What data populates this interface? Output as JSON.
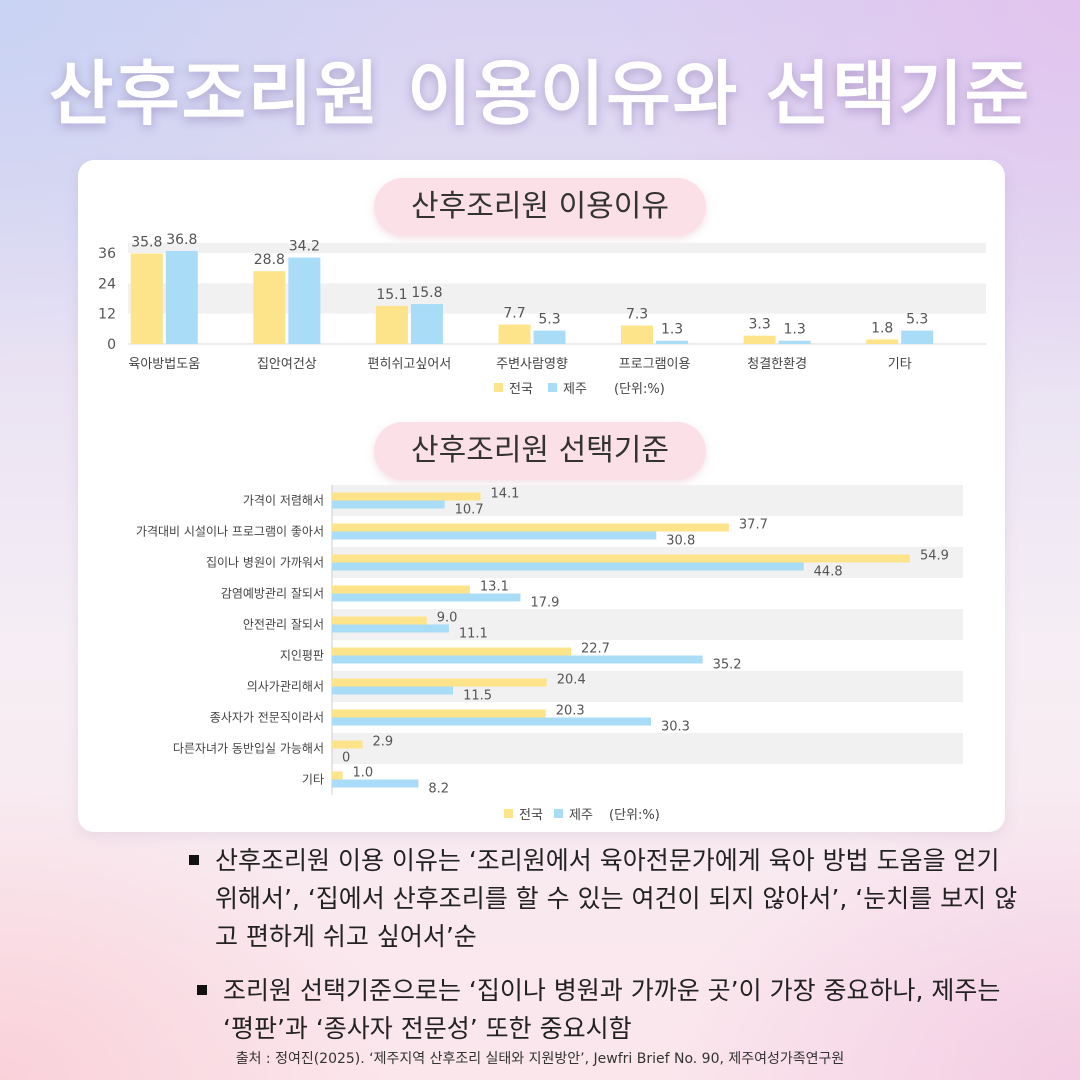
{
  "title": "산후조리원 이용이유와 선택기준",
  "colors": {
    "national": "#fde38a",
    "jeju": "#a9dcf6",
    "pill_bg": "#fbe1e7"
  },
  "chart_data": [
    {
      "type": "bar",
      "title": "산후조리원 이용이유",
      "categories": [
        "육아방법도움",
        "집안여건상",
        "편히쉬고싶어서",
        "주변사람영향",
        "프로그램이용",
        "청결한환경",
        "기타"
      ],
      "series": [
        {
          "name": "전국",
          "values": [
            35.8,
            28.8,
            15.1,
            7.7,
            7.3,
            3.3,
            1.8
          ]
        },
        {
          "name": "제주",
          "values": [
            36.8,
            34.2,
            15.8,
            5.3,
            1.3,
            1.3,
            5.3
          ]
        }
      ],
      "yticks": [
        "36",
        "24",
        "12",
        "0"
      ],
      "ylim": [
        0,
        40
      ],
      "unit": "(단위:%)",
      "legend": "bottom",
      "grid": true
    },
    {
      "type": "bar",
      "orientation": "horizontal",
      "title": "산후조리원 선택기준",
      "categories": [
        "가격이 저렴해서",
        "가격대비 시설이나 프로그램이 좋아서",
        "집이나 병원이 가까워서",
        "감염예방관리 잘되서",
        "안전관리 잘되서",
        "지인평판",
        "의사가관리해서",
        "종사자가 전문직이라서",
        "다른자녀가 동반입실 가능해서",
        "기타"
      ],
      "series": [
        {
          "name": "전국",
          "values": [
            14.1,
            37.7,
            54.9,
            13.1,
            9.0,
            22.7,
            20.4,
            20.3,
            2.9,
            1.0
          ]
        },
        {
          "name": "제주",
          "values": [
            10.7,
            30.8,
            44.8,
            17.9,
            11.1,
            35.2,
            11.5,
            30.3,
            0,
            8.2
          ]
        }
      ],
      "value_labels": {
        "national": [
          "14.1",
          "37.7",
          "54.9",
          "13.1",
          "9.0",
          "22.7",
          "20.4",
          "20.3",
          "2.9",
          "1.0"
        ],
        "jeju": [
          "10.7",
          "30.8",
          "44.8",
          "17.9",
          "11.1",
          "35.2",
          "11.5",
          "30.3",
          "0",
          "8.2"
        ]
      },
      "xlim": [
        0,
        55
      ],
      "unit": "(단위:%)",
      "legend": "bottom",
      "grid": true
    }
  ],
  "bullets": [
    "산후조리원 이용 이유는 ‘조리원에서 육아전문가에게 육아 방법 도움을 얻기 위해서’, ‘집에서 산후조리를 할 수 있는 여건이 되지 않아서’, ‘눈치를 보지 않고 편하게 쉬고 싶어서’순",
    "조리원 선택기준으로는 ‘집이나 병원과 가까운 곳’이 가장 중요하나, 제주는 ‘평판’과 ‘종사자 전문성’ 또한 중요시함"
  ],
  "source": "출처 : 정여진(2025). ‘제주지역 산후조리 실태와 지원방안’, Jewfri Brief No. 90, 제주여성가족연구원"
}
